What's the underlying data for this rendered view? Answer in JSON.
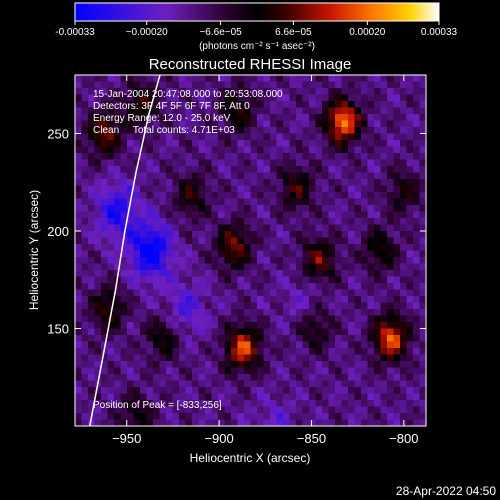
{
  "chart_data": {
    "type": "heatmap",
    "title": "Reconstructed RHESSI Image",
    "xlabel": "Heliocentric X (arcsec)",
    "ylabel": "Heliocentric Y (arcsec)",
    "xlim": [
      -978,
      -788
    ],
    "ylim": [
      100,
      280
    ],
    "x_ticks": [
      -950,
      -900,
      -850,
      -800
    ],
    "y_ticks": [
      150,
      200,
      250
    ],
    "colorbar": {
      "label": "(photons cm⁻² s⁻¹ asec⁻²)",
      "min": -0.00033,
      "max": 0.00033,
      "tick_values": [
        -0.00033,
        -0.0002,
        -6.6e-05,
        6.6e-05,
        0.0002,
        0.00033
      ],
      "tick_labels": [
        "-0.00033",
        "−0.00020",
        "−6.6e−05",
        "6.6e−05",
        "0.00020",
        "0.00033"
      ]
    },
    "annotations": [
      "15-Jan-2004 20:47:08.000 to 20:53:08.000",
      "Detectors: 3F 4F 5F 6F 7F 8F, Att 0",
      "Energy Range: 12.0 - 25.0 keV",
      "Clean     Total counts: 4.71E+03"
    ],
    "peak_label": "Position of Peak = [-833,256]",
    "peak": [
      -833,
      256
    ],
    "limb_points": [
      [
        -932,
        280
      ],
      [
        -938,
        260
      ],
      [
        -945,
        230
      ],
      [
        -951,
        200
      ],
      [
        -956,
        170
      ],
      [
        -962,
        140
      ],
      [
        -967,
        115
      ],
      [
        -970,
        100
      ]
    ],
    "sources": [
      {
        "x": -833,
        "y": 256,
        "amp": 1.0
      },
      {
        "x": -887,
        "y": 140,
        "amp": 0.85
      },
      {
        "x": -807,
        "y": 145,
        "amp": 0.9
      },
      {
        "x": -846,
        "y": 185,
        "amp": 0.55
      },
      {
        "x": -892,
        "y": 192,
        "amp": 0.6
      },
      {
        "x": -858,
        "y": 222,
        "amp": 0.45
      },
      {
        "x": -962,
        "y": 250,
        "amp": 0.6
      },
      {
        "x": -942,
        "y": 265,
        "amp": 0.45
      },
      {
        "x": -890,
        "y": 262,
        "amp": 0.45
      },
      {
        "x": -960,
        "y": 160,
        "amp": 0.45
      },
      {
        "x": -915,
        "y": 218,
        "amp": 0.4
      },
      {
        "x": -930,
        "y": 145,
        "amp": 0.4
      },
      {
        "x": -848,
        "y": 150,
        "amp": 0.35
      },
      {
        "x": -800,
        "y": 220,
        "amp": 0.35
      },
      {
        "x": -813,
        "y": 190,
        "amp": 0.4
      },
      {
        "x": -945,
        "y": 105,
        "amp": 0.35
      }
    ],
    "dips": [
      {
        "x": -937,
        "y": 190,
        "amp": 0.7
      },
      {
        "x": -955,
        "y": 210,
        "amp": 0.5
      },
      {
        "x": -918,
        "y": 160,
        "amp": 0.3
      },
      {
        "x": -870,
        "y": 100,
        "amp": 0.2
      },
      {
        "x": -855,
        "y": 165,
        "amp": 0.15
      }
    ]
  },
  "footer_timestamp": "28-Apr-2022 04:50"
}
